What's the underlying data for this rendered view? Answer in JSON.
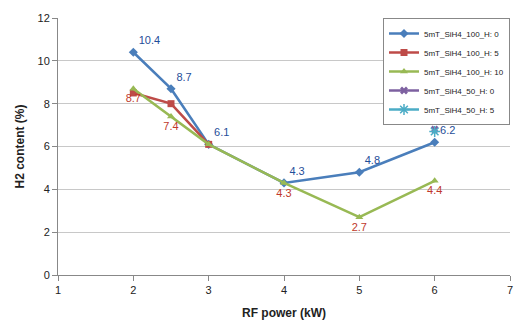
{
  "chart_data": {
    "type": "line",
    "xlabel": "RF power (kW)",
    "ylabel": "H2 content (%)",
    "xlim": [
      1,
      7
    ],
    "xticks": [
      1,
      2,
      3,
      4,
      5,
      6,
      7
    ],
    "ylim": [
      0,
      12
    ],
    "yticks": [
      0,
      2,
      4,
      6,
      8,
      10,
      12
    ],
    "grid": true,
    "legend": "upper right",
    "data_labels": true,
    "series": [
      {
        "name": "5mT_SiH4_100_H: 0",
        "color": "#4a7ebb",
        "marker": "diamond",
        "x": [
          2,
          2.5,
          3,
          4,
          5,
          6
        ],
        "values": [
          10.4,
          8.7,
          6.1,
          4.3,
          4.8,
          6.2
        ],
        "value_labels": [
          "10.4",
          "8.7",
          "6.1",
          "4.3",
          "4.8",
          "6.2"
        ]
      },
      {
        "name": "5mT_SiH4_100_H: 5",
        "color": "#be4b48",
        "marker": "square",
        "x": [
          2,
          2.5,
          3
        ],
        "values": [
          8.5,
          8.0,
          6.1
        ]
      },
      {
        "name": "5mT_SiH4_100_H: 10",
        "color": "#98b954",
        "marker": "triangle-up",
        "x": [
          2,
          2.5,
          3,
          4,
          5,
          6
        ],
        "values": [
          8.7,
          7.4,
          6.1,
          4.3,
          2.7,
          4.4
        ],
        "value_labels": [
          "8.7",
          "7.4",
          null,
          "4.3",
          "2.7",
          "4.4"
        ]
      },
      {
        "name": "5mT_SiH4_50_H: 0",
        "color": "#7d60a0",
        "marker": "x",
        "x": [
          6
        ],
        "values": [
          6.8
        ]
      },
      {
        "name": "5mT_SiH4_50_H: 5",
        "color": "#4bacc6",
        "marker": "asterisk",
        "x": [
          6
        ],
        "values": [
          6.7
        ]
      }
    ]
  }
}
